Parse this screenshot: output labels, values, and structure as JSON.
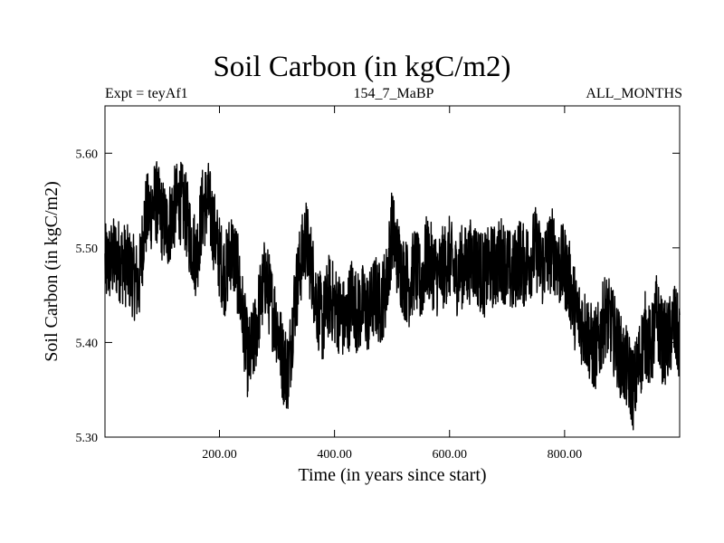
{
  "header": {
    "title": "Soil Carbon (in kgC/m2)",
    "subtitle_left": "Expt = teyAf1",
    "subtitle_center": "154_7_MaBP",
    "subtitle_right": "ALL_MONTHS"
  },
  "chart_data": {
    "type": "line",
    "title": "Soil Carbon (in kgC/m2)",
    "xlabel": "Time (in years since start)",
    "ylabel": "Soil Carbon (in kgC/m2)",
    "xlim": [
      1,
      1000
    ],
    "ylim": [
      5.3,
      5.65
    ],
    "x_ticks": [
      200,
      400,
      600,
      800
    ],
    "x_tick_labels": [
      "200.00",
      "400.00",
      "600.00",
      "800.00"
    ],
    "y_ticks": [
      5.3,
      5.4,
      5.5,
      5.6
    ],
    "y_tick_labels": [
      "5.30",
      "5.40",
      "5.50",
      "5.60"
    ],
    "grid": false,
    "line_color": "#000000",
    "series": [
      {
        "x": [
          1,
          20,
          40,
          60,
          70,
          80,
          90,
          100,
          110,
          120,
          130,
          140,
          150,
          160,
          170,
          180,
          190,
          200,
          210,
          220,
          230,
          240,
          250,
          260,
          270,
          280,
          290,
          300,
          310,
          320,
          330,
          340,
          350,
          360,
          370,
          380,
          390,
          400,
          410,
          420,
          430,
          440,
          450,
          460,
          470,
          480,
          490,
          500,
          510,
          520,
          530,
          540,
          550,
          560,
          570,
          580,
          590,
          600,
          610,
          620,
          630,
          640,
          650,
          660,
          670,
          680,
          690,
          700,
          710,
          720,
          730,
          740,
          750,
          760,
          770,
          780,
          790,
          800,
          810,
          820,
          830,
          840,
          850,
          860,
          870,
          880,
          890,
          900,
          910,
          920,
          930,
          940,
          950,
          960,
          970,
          980,
          990,
          1000
        ],
        "values": [
          5.48,
          5.49,
          5.48,
          5.46,
          5.53,
          5.54,
          5.55,
          5.53,
          5.52,
          5.54,
          5.55,
          5.54,
          5.51,
          5.49,
          5.54,
          5.55,
          5.52,
          5.49,
          5.47,
          5.5,
          5.48,
          5.43,
          5.38,
          5.4,
          5.44,
          5.47,
          5.44,
          5.42,
          5.38,
          5.37,
          5.44,
          5.48,
          5.51,
          5.48,
          5.44,
          5.42,
          5.45,
          5.44,
          5.43,
          5.42,
          5.45,
          5.43,
          5.44,
          5.43,
          5.45,
          5.44,
          5.46,
          5.52,
          5.49,
          5.47,
          5.46,
          5.48,
          5.46,
          5.49,
          5.48,
          5.47,
          5.48,
          5.49,
          5.47,
          5.48,
          5.48,
          5.49,
          5.48,
          5.47,
          5.48,
          5.48,
          5.49,
          5.48,
          5.47,
          5.49,
          5.48,
          5.49,
          5.5,
          5.48,
          5.49,
          5.5,
          5.48,
          5.48,
          5.46,
          5.43,
          5.42,
          5.41,
          5.39,
          5.4,
          5.43,
          5.42,
          5.4,
          5.38,
          5.37,
          5.35,
          5.38,
          5.41,
          5.39,
          5.43,
          5.4,
          5.4,
          5.42,
          5.4
        ],
        "amplitude": 0.045
      }
    ]
  }
}
